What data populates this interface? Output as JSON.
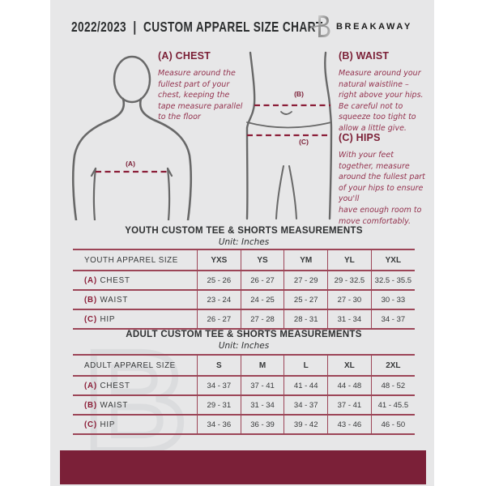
{
  "header": {
    "title": "2022/2023  |  CUSTOM APPAREL SIZE CHART",
    "brand": "BREAKAWAY"
  },
  "logo": {
    "icon": "breakaway-b-logo",
    "watermark_letter": "B"
  },
  "guide": {
    "chest": {
      "title": "(A) CHEST",
      "marker": "(A)",
      "body": "Measure around the\nfullest part of your\nchest, keeping the\ntape measure parallel\nto the floor"
    },
    "waist": {
      "title": "(B) WAIST",
      "marker": "(B)",
      "body": "Measure around your\nnatural waistline –\nright above your hips.\nBe careful not to\nsqueeze too tight to\nallow a little give."
    },
    "hips": {
      "title": "(C) HIPS",
      "marker": "(C)",
      "body": "With your feet\ntogether, measure\naround the fullest part\nof your hips to ensure\nyou'll\nhave enough room to\nmove comfortably."
    }
  },
  "youth_table": {
    "title": "YOUTH CUSTOM TEE & SHORTS MEASUREMENTS",
    "unit": "Unit: Inches",
    "size_column_header": "YOUTH APPAREL SIZE",
    "sizes": [
      "YXS",
      "YS",
      "YM",
      "YL",
      "YXL"
    ],
    "rows": [
      {
        "key": "(A)",
        "label": "CHEST",
        "values": [
          "25 - 26",
          "26 - 27",
          "27 - 29",
          "29 - 32.5",
          "32.5 - 35.5"
        ]
      },
      {
        "key": "(B)",
        "label": "WAIST",
        "values": [
          "23 - 24",
          "24 - 25",
          "25 - 27",
          "27 - 30",
          "30 - 33"
        ]
      },
      {
        "key": "(C)",
        "label": "HIP",
        "values": [
          "26 - 27",
          "27 - 28",
          "28 - 31",
          "31 - 34",
          "34 - 37"
        ]
      }
    ]
  },
  "adult_table": {
    "title": "ADULT CUSTOM TEE & SHORTS MEASUREMENTS",
    "unit": "Unit: Inches",
    "size_column_header": "ADULT APPAREL SIZE",
    "sizes": [
      "S",
      "M",
      "L",
      "XL",
      "2XL"
    ],
    "rows": [
      {
        "key": "(A)",
        "label": "CHEST",
        "values": [
          "34 - 37",
          "37 - 41",
          "41 - 44",
          "44 - 48",
          "48 - 52"
        ]
      },
      {
        "key": "(B)",
        "label": "WAIST",
        "values": [
          "29 - 31",
          "31 - 34",
          "34 - 37",
          "37 - 41",
          "41 - 45.5"
        ]
      },
      {
        "key": "(C)",
        "label": "HIP",
        "values": [
          "34 - 36",
          "36 - 39",
          "39 - 42",
          "43 - 46",
          "46 - 50"
        ]
      }
    ]
  },
  "colors": {
    "page_background": "#e7e7e8",
    "maroon_dark": "#7b1f36",
    "maroon_body_text": "#93324e",
    "table_line": "#9c4557",
    "footer_bar": "#7b2038",
    "dark_text": "#2f3132",
    "figure_stroke": "#686868",
    "watermark": "#dbdcde"
  }
}
